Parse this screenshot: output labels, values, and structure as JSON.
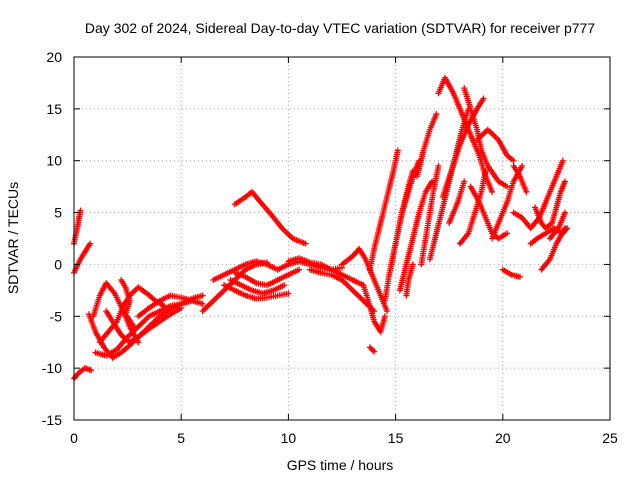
{
  "chart_data": {
    "type": "scatter",
    "title": "Day 302 of 2024, Sidereal Day-to-day VTEC variation (SDTVAR) for receiver p777",
    "xlabel": "GPS time / hours",
    "ylabel": "SDTVAR / TECUs",
    "xlim": [
      0,
      25
    ],
    "ylim": [
      -15,
      20
    ],
    "xticks": [
      "0",
      "5",
      "10",
      "15",
      "20",
      "25"
    ],
    "yticks": [
      "-15",
      "-10",
      "-5",
      "0",
      "5",
      "10",
      "15",
      "20"
    ],
    "grid": true,
    "marker": "+",
    "color": "#ff0000",
    "tracks": [
      [
        [
          0.0,
          2.0
        ],
        [
          0.15,
          3.5
        ],
        [
          0.3,
          5.2
        ]
      ],
      [
        [
          0.0,
          -0.8
        ],
        [
          0.3,
          0.5
        ],
        [
          0.6,
          1.5
        ],
        [
          0.75,
          2.0
        ]
      ],
      [
        [
          0.0,
          -11.0
        ],
        [
          0.2,
          -10.5
        ],
        [
          0.5,
          -10.0
        ],
        [
          0.8,
          -10.2
        ]
      ],
      [
        [
          0.7,
          -4.8
        ],
        [
          1.0,
          -6.5
        ],
        [
          1.4,
          -8.0
        ],
        [
          1.8,
          -9.0
        ],
        [
          2.2,
          -8.5
        ],
        [
          2.6,
          -7.8
        ],
        [
          3.0,
          -7.0
        ],
        [
          3.5,
          -6.0
        ],
        [
          4.0,
          -5.0
        ],
        [
          4.5,
          -4.3
        ],
        [
          5.0,
          -3.8
        ],
        [
          5.5,
          -3.3
        ],
        [
          6.0,
          -3.0
        ]
      ],
      [
        [
          0.9,
          -5.0
        ],
        [
          1.2,
          -3.0
        ],
        [
          1.5,
          -1.8
        ],
        [
          1.9,
          -2.8
        ],
        [
          2.3,
          -4.5
        ],
        [
          2.6,
          -6.0
        ],
        [
          3.0,
          -7.5
        ]
      ],
      [
        [
          1.5,
          -4.5
        ],
        [
          1.8,
          -5.5
        ],
        [
          2.2,
          -6.8
        ],
        [
          2.6,
          -7.5
        ],
        [
          3.0,
          -7.0
        ],
        [
          3.5,
          -6.2
        ],
        [
          4.0,
          -5.5
        ],
        [
          4.5,
          -4.8
        ],
        [
          5.0,
          -4.2
        ]
      ],
      [
        [
          1.2,
          -7.5
        ],
        [
          1.6,
          -6.5
        ],
        [
          2.0,
          -5.5
        ],
        [
          2.3,
          -4.0
        ],
        [
          2.6,
          -3.0
        ],
        [
          3.0,
          -2.2
        ],
        [
          3.4,
          -2.8
        ],
        [
          3.8,
          -3.5
        ],
        [
          4.2,
          -4.0
        ]
      ],
      [
        [
          1.0,
          -8.5
        ],
        [
          1.5,
          -8.8
        ],
        [
          2.0,
          -8.2
        ],
        [
          2.5,
          -7.0
        ],
        [
          3.0,
          -6.0
        ],
        [
          3.5,
          -5.0
        ],
        [
          4.0,
          -4.5
        ],
        [
          4.5,
          -4.0
        ],
        [
          5.0,
          -3.8
        ],
        [
          5.5,
          -3.5
        ]
      ],
      [
        [
          2.2,
          -1.5
        ],
        [
          2.4,
          -2.2
        ],
        [
          2.6,
          -3.5
        ],
        [
          2.4,
          -4.8
        ],
        [
          2.8,
          -6.0
        ]
      ],
      [
        [
          3.0,
          -5.0
        ],
        [
          3.5,
          -4.2
        ],
        [
          4.0,
          -3.5
        ],
        [
          4.5,
          -3.0
        ],
        [
          5.0,
          -3.2
        ],
        [
          5.5,
          -3.5
        ],
        [
          6.0,
          -3.8
        ]
      ],
      [
        [
          6.0,
          -4.5
        ],
        [
          6.5,
          -3.5
        ],
        [
          7.0,
          -2.5
        ],
        [
          7.5,
          -1.5
        ],
        [
          8.0,
          -0.5
        ],
        [
          8.5,
          0.0
        ],
        [
          9.0,
          0.2
        ]
      ],
      [
        [
          6.5,
          -1.5
        ],
        [
          7.0,
          -1.0
        ],
        [
          7.5,
          -0.5
        ],
        [
          8.0,
          0.0
        ],
        [
          8.5,
          0.3
        ],
        [
          9.0,
          0.0
        ],
        [
          9.5,
          -0.5
        ]
      ],
      [
        [
          7.0,
          -2.0
        ],
        [
          7.5,
          -2.5
        ],
        [
          8.0,
          -3.0
        ],
        [
          8.5,
          -3.3
        ],
        [
          9.0,
          -3.2
        ],
        [
          9.5,
          -3.0
        ],
        [
          10.0,
          -2.8
        ]
      ],
      [
        [
          7.3,
          -1.5
        ],
        [
          7.8,
          -2.0
        ],
        [
          8.3,
          -2.5
        ],
        [
          8.8,
          -2.8
        ],
        [
          9.3,
          -2.5
        ],
        [
          9.8,
          -2.0
        ]
      ],
      [
        [
          7.5,
          -0.8
        ],
        [
          8.0,
          -1.2
        ],
        [
          8.5,
          -1.8
        ],
        [
          9.0,
          -2.0
        ],
        [
          9.5,
          -1.5
        ],
        [
          10.0,
          -1.0
        ],
        [
          10.5,
          -0.5
        ]
      ],
      [
        [
          7.5,
          5.8
        ],
        [
          8.0,
          6.5
        ],
        [
          8.3,
          7.0
        ],
        [
          8.7,
          6.0
        ],
        [
          9.2,
          4.8
        ],
        [
          9.7,
          3.5
        ],
        [
          10.2,
          2.5
        ],
        [
          10.8,
          2.0
        ]
      ],
      [
        [
          9.5,
          -0.5
        ],
        [
          10.0,
          0.0
        ],
        [
          10.5,
          0.3
        ],
        [
          11.0,
          0.0
        ],
        [
          11.5,
          -0.3
        ],
        [
          12.0,
          -0.5
        ],
        [
          12.5,
          -0.3
        ]
      ],
      [
        [
          10.0,
          0.3
        ],
        [
          10.5,
          0.6
        ],
        [
          11.0,
          0.2
        ],
        [
          11.5,
          0.0
        ],
        [
          12.0,
          -0.5
        ],
        [
          12.5,
          -1.0
        ],
        [
          13.0,
          -1.5
        ],
        [
          13.5,
          -2.0
        ]
      ],
      [
        [
          11.0,
          -0.5
        ],
        [
          11.5,
          -0.8
        ],
        [
          12.0,
          -1.0
        ],
        [
          12.5,
          -1.5
        ],
        [
          13.0,
          -2.5
        ],
        [
          13.5,
          -3.5
        ],
        [
          14.0,
          -4.5
        ]
      ],
      [
        [
          12.5,
          0.0
        ],
        [
          13.0,
          0.8
        ],
        [
          13.3,
          1.5
        ],
        [
          13.6,
          0.5
        ],
        [
          14.0,
          -1.5
        ],
        [
          14.3,
          -3.0
        ],
        [
          14.6,
          -4.5
        ]
      ],
      [
        [
          13.5,
          -2.0
        ],
        [
          13.8,
          -4.0
        ],
        [
          14.0,
          -5.5
        ],
        [
          14.3,
          -6.5
        ],
        [
          14.5,
          -5.0
        ]
      ],
      [
        [
          13.8,
          -8.0
        ],
        [
          14.0,
          -8.4
        ]
      ],
      [
        [
          13.8,
          -0.5
        ],
        [
          14.0,
          1.5
        ],
        [
          14.3,
          4.0
        ],
        [
          14.6,
          6.5
        ],
        [
          14.9,
          9.0
        ],
        [
          15.1,
          11.0
        ]
      ],
      [
        [
          14.5,
          -3.5
        ],
        [
          14.7,
          -1.0
        ],
        [
          15.0,
          2.0
        ],
        [
          15.3,
          5.0
        ],
        [
          15.6,
          7.0
        ],
        [
          15.9,
          9.0
        ],
        [
          16.1,
          10.0
        ]
      ],
      [
        [
          14.8,
          0.0
        ],
        [
          15.1,
          3.0
        ],
        [
          15.3,
          5.0
        ],
        [
          15.6,
          7.5
        ],
        [
          15.8,
          9.0
        ]
      ],
      [
        [
          15.2,
          -2.5
        ],
        [
          15.5,
          0.0
        ],
        [
          15.8,
          2.5
        ],
        [
          16.1,
          5.0
        ],
        [
          16.4,
          7.0
        ],
        [
          16.7,
          8.0
        ]
      ],
      [
        [
          15.5,
          -3.0
        ],
        [
          15.6,
          -1.5
        ],
        [
          15.8,
          0.0
        ]
      ],
      [
        [
          16.2,
          0.0
        ],
        [
          16.4,
          2.5
        ],
        [
          16.6,
          5.0
        ],
        [
          16.8,
          7.5
        ],
        [
          17.0,
          9.5
        ]
      ],
      [
        [
          16.0,
          8.5
        ],
        [
          16.3,
          11.0
        ],
        [
          16.6,
          13.0
        ],
        [
          16.9,
          14.5
        ]
      ],
      [
        [
          16.6,
          0.5
        ],
        [
          16.9,
          3.0
        ],
        [
          17.2,
          5.5
        ],
        [
          17.5,
          8.0
        ],
        [
          17.8,
          10.5
        ],
        [
          18.1,
          13.0
        ],
        [
          18.4,
          15.0
        ]
      ],
      [
        [
          17.0,
          16.5
        ],
        [
          17.3,
          18.0
        ],
        [
          17.7,
          16.5
        ],
        [
          18.1,
          14.5
        ],
        [
          18.5,
          12.5
        ],
        [
          18.9,
          10.5
        ],
        [
          19.2,
          8.5
        ],
        [
          19.5,
          7.0
        ]
      ],
      [
        [
          17.2,
          6.5
        ],
        [
          17.6,
          9.0
        ],
        [
          18.0,
          11.5
        ],
        [
          18.4,
          13.5
        ],
        [
          18.8,
          15.0
        ],
        [
          19.1,
          16.0
        ]
      ],
      [
        [
          17.5,
          4.0
        ],
        [
          17.9,
          6.0
        ],
        [
          18.2,
          8.0
        ]
      ],
      [
        [
          18.0,
          2.0
        ],
        [
          18.4,
          3.0
        ],
        [
          18.7,
          5.0
        ],
        [
          19.0,
          7.0
        ],
        [
          19.2,
          9.0
        ]
      ],
      [
        [
          18.2,
          17.0
        ],
        [
          18.5,
          15.0
        ],
        [
          18.8,
          13.0
        ],
        [
          19.0,
          11.0
        ],
        [
          19.3,
          9.5
        ],
        [
          19.8,
          8.0
        ],
        [
          20.2,
          7.5
        ]
      ],
      [
        [
          18.8,
          12.0
        ],
        [
          19.3,
          13.0
        ],
        [
          19.8,
          12.0
        ],
        [
          20.2,
          10.5
        ],
        [
          20.5,
          10.0
        ]
      ],
      [
        [
          18.5,
          7.5
        ],
        [
          18.9,
          6.0
        ],
        [
          19.2,
          4.5
        ],
        [
          19.5,
          3.0
        ],
        [
          19.8,
          2.5
        ],
        [
          20.2,
          3.0
        ]
      ],
      [
        [
          19.5,
          2.5
        ],
        [
          19.8,
          4.0
        ],
        [
          20.2,
          6.0
        ],
        [
          20.5,
          8.0
        ],
        [
          20.9,
          9.5
        ]
      ],
      [
        [
          20.0,
          -0.5
        ],
        [
          20.4,
          -1.0
        ],
        [
          20.8,
          -1.2
        ]
      ],
      [
        [
          20.5,
          5.0
        ],
        [
          20.9,
          4.5
        ],
        [
          21.3,
          3.5
        ],
        [
          21.7,
          4.5
        ],
        [
          22.1,
          6.5
        ],
        [
          22.5,
          8.5
        ],
        [
          22.8,
          10.0
        ]
      ],
      [
        [
          20.5,
          9.5
        ],
        [
          20.8,
          8.5
        ],
        [
          21.1,
          7.0
        ]
      ],
      [
        [
          21.3,
          2.0
        ],
        [
          21.6,
          2.5
        ],
        [
          22.0,
          3.0
        ],
        [
          22.4,
          3.5
        ],
        [
          22.8,
          3.0
        ],
        [
          23.0,
          3.5
        ]
      ],
      [
        [
          21.5,
          5.5
        ],
        [
          21.8,
          4.0
        ],
        [
          22.0,
          3.5
        ],
        [
          22.3,
          4.0
        ],
        [
          22.5,
          5.5
        ],
        [
          22.7,
          7.0
        ],
        [
          22.9,
          8.0
        ]
      ],
      [
        [
          21.8,
          -0.5
        ],
        [
          22.2,
          0.5
        ],
        [
          22.5,
          2.0
        ],
        [
          22.9,
          3.5
        ]
      ],
      [
        [
          22.2,
          2.5
        ],
        [
          22.6,
          3.5
        ],
        [
          22.9,
          5.0
        ]
      ]
    ]
  }
}
